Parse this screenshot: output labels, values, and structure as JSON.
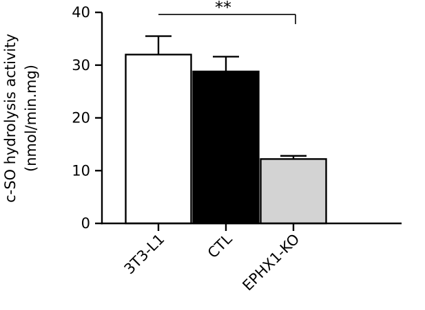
{
  "chart_data": {
    "type": "bar",
    "title": "",
    "xlabel": "",
    "ylabel_line1": "c-SO hydrolysis activity",
    "ylabel_line2": "(nmol/min.mg)",
    "ylim": [
      0,
      40
    ],
    "yticks": [
      0,
      10,
      20,
      30,
      40
    ],
    "grid": false,
    "categories": [
      "3T3-L1",
      "CTL",
      "EPHX1-KO"
    ],
    "values": [
      32.0,
      28.8,
      12.2
    ],
    "errors": [
      3.5,
      2.8,
      0.6
    ],
    "bar_colors": [
      "#ffffff",
      "#000000",
      "#d3d3d3"
    ],
    "significance": {
      "from_category": "3T3-L1",
      "to_category": "EPHX1-KO",
      "y": 39.6,
      "label": "**"
    }
  }
}
